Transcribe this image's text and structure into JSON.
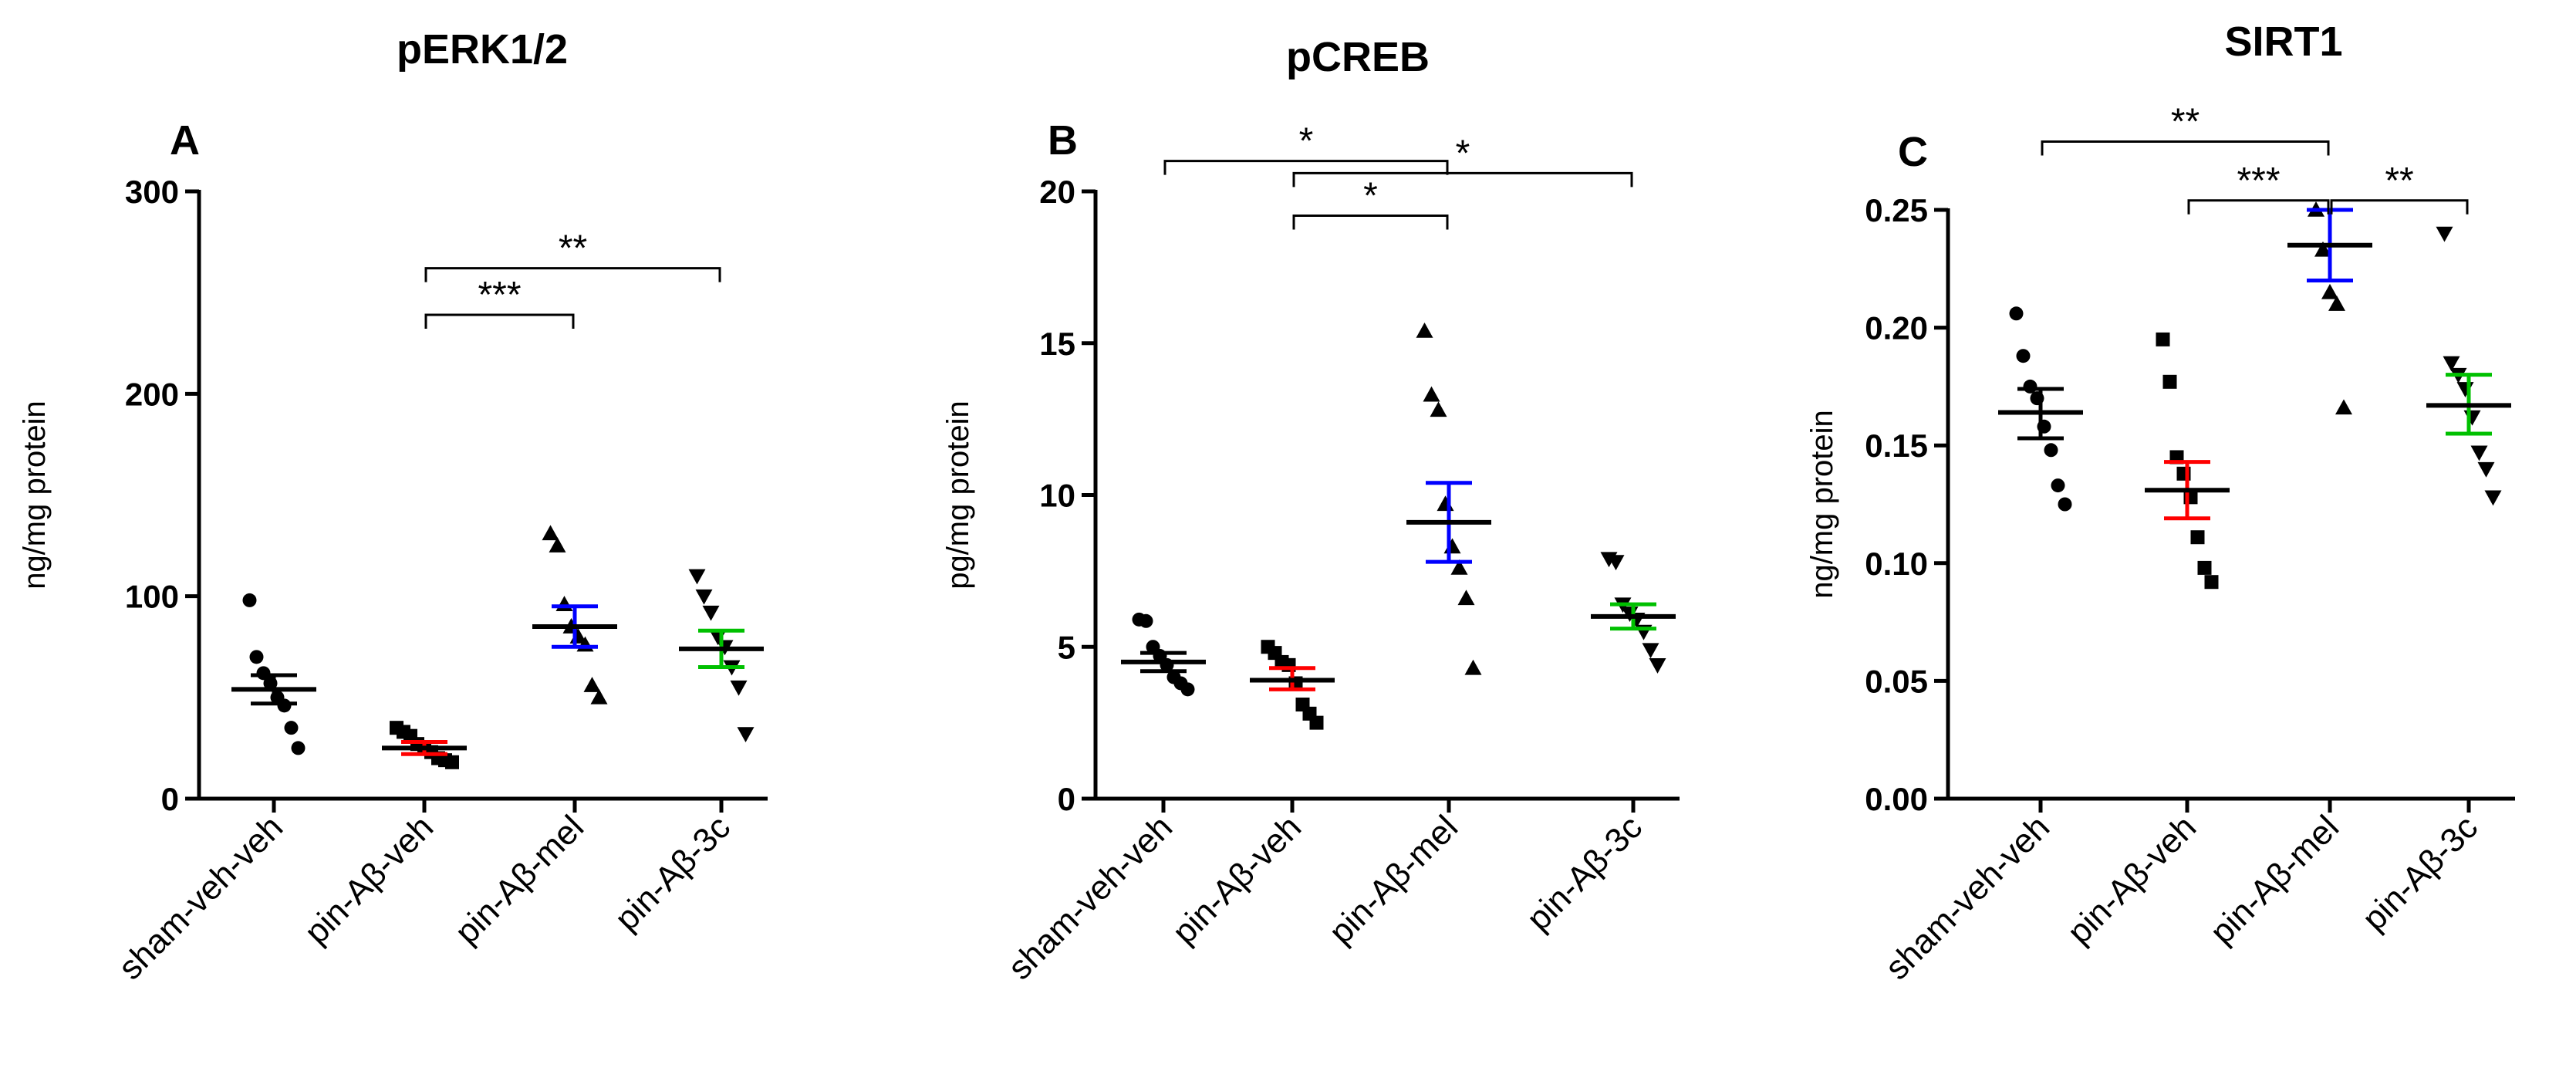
{
  "chart_data": [
    {
      "type": "scatter",
      "title": "pERK1/2",
      "panel_label": "A",
      "ylabel": "ng/mg protein",
      "ylim": [
        0,
        300
      ],
      "yticks": [
        0,
        100,
        200,
        300
      ],
      "categories": [
        "sham-veh-veh",
        "pin-Aβ-veh",
        "pin-Aβ-mel",
        "pin-Aβ-3c"
      ],
      "markers": [
        "circle",
        "square",
        "triangle-up",
        "triangle-down"
      ],
      "mean_colors": [
        "#000000",
        "#ff0000",
        "#0000ff",
        "#00c000"
      ],
      "groups": [
        {
          "points": [
            98,
            70,
            62,
            57,
            50,
            46,
            35,
            25
          ],
          "mean": 54,
          "sem_low": 47,
          "sem_high": 61
        },
        {
          "points": [
            35,
            33,
            31,
            27,
            25,
            23,
            20,
            19,
            18
          ],
          "mean": 25,
          "sem_low": 22,
          "sem_high": 28
        },
        {
          "points": [
            131,
            125,
            96,
            85,
            80,
            76,
            56,
            50
          ],
          "mean": 85,
          "sem_low": 75,
          "sem_high": 95
        },
        {
          "points": [
            110,
            100,
            92,
            80,
            75,
            65,
            55,
            32
          ],
          "mean": 74,
          "sem_low": 65,
          "sem_high": 83
        }
      ],
      "brackets": [
        {
          "from": 1,
          "to": 3,
          "y": 262,
          "label": "**"
        },
        {
          "from": 1,
          "to": 2,
          "y": 239,
          "label": "***"
        }
      ]
    },
    {
      "type": "scatter",
      "title": "pCREB",
      "panel_label": "B",
      "ylabel": "pg/mg protein",
      "ylim": [
        0,
        20
      ],
      "yticks": [
        0,
        5,
        10,
        15,
        20
      ],
      "categories": [
        "sham-veh-veh",
        "pin-Aβ-veh",
        "pin-Aβ-mel",
        "pin-Aβ-3c"
      ],
      "markers": [
        "circle",
        "square",
        "triangle-up",
        "triangle-down"
      ],
      "mean_colors": [
        "#000000",
        "#ff0000",
        "#0000ff",
        "#00c000"
      ],
      "groups": [
        {
          "points": [
            5.9,
            5.85,
            5.0,
            4.7,
            4.4,
            4.0,
            3.8,
            3.6
          ],
          "mean": 4.5,
          "sem_low": 4.2,
          "sem_high": 4.8
        },
        {
          "points": [
            5.0,
            4.8,
            4.5,
            4.4,
            3.8,
            3.1,
            2.8,
            2.5
          ],
          "mean": 3.9,
          "sem_low": 3.6,
          "sem_high": 4.3
        },
        {
          "points": [
            15.4,
            13.3,
            12.8,
            9.7,
            8.3,
            7.6,
            6.6,
            4.3
          ],
          "mean": 9.1,
          "sem_low": 7.8,
          "sem_high": 10.4
        },
        {
          "points": [
            7.9,
            7.8,
            6.4,
            6.1,
            5.9,
            5.5,
            4.9,
            4.4
          ],
          "mean": 6.0,
          "sem_low": 5.6,
          "sem_high": 6.4
        }
      ],
      "brackets": [
        {
          "from": 0,
          "to": 2,
          "y": 21.0,
          "label": "*"
        },
        {
          "from": 1,
          "to": 3,
          "y": 20.6,
          "label": "*"
        },
        {
          "from": 1,
          "to": 2,
          "y": 19.2,
          "label": "*"
        }
      ]
    },
    {
      "type": "scatter",
      "title": "SIRT1",
      "panel_label": "C",
      "ylabel": "ng/mg protein",
      "ylim": [
        0,
        0.25
      ],
      "yticks": [
        "0.00",
        "0.05",
        "0.10",
        "0.15",
        "0.20",
        "0.25"
      ],
      "categories": [
        "sham-veh-veh",
        "pin-Aβ-veh",
        "pin-Aβ-mel",
        "pin-Aβ-3c"
      ],
      "markers": [
        "circle",
        "square",
        "triangle-up",
        "triangle-down"
      ],
      "mean_colors": [
        "#000000",
        "#ff0000",
        "#0000ff",
        "#00c000"
      ],
      "groups": [
        {
          "points": [
            0.206,
            0.188,
            0.175,
            0.17,
            0.158,
            0.148,
            0.133,
            0.125
          ],
          "mean": 0.164,
          "sem_low": 0.153,
          "sem_high": 0.174
        },
        {
          "points": [
            0.195,
            0.177,
            0.145,
            0.138,
            0.128,
            0.111,
            0.098,
            0.092
          ],
          "mean": 0.131,
          "sem_low": 0.119,
          "sem_high": 0.143
        },
        {
          "points": [
            0.25,
            0.233,
            0.215,
            0.21,
            0.166
          ],
          "mean": 0.235,
          "sem_low": 0.22,
          "sem_high": 0.25
        },
        {
          "points": [
            0.24,
            0.185,
            0.18,
            0.174,
            0.162,
            0.147,
            0.14,
            0.128
          ],
          "mean": 0.167,
          "sem_low": 0.155,
          "sem_high": 0.18
        }
      ],
      "brackets": [
        {
          "from": 0,
          "to": 2,
          "y": 0.279,
          "label": "**"
        },
        {
          "from": 1,
          "to": 2,
          "y": 0.254,
          "label": "***"
        },
        {
          "from": 2,
          "to": 3,
          "y": 0.254,
          "label": "**"
        }
      ]
    }
  ]
}
